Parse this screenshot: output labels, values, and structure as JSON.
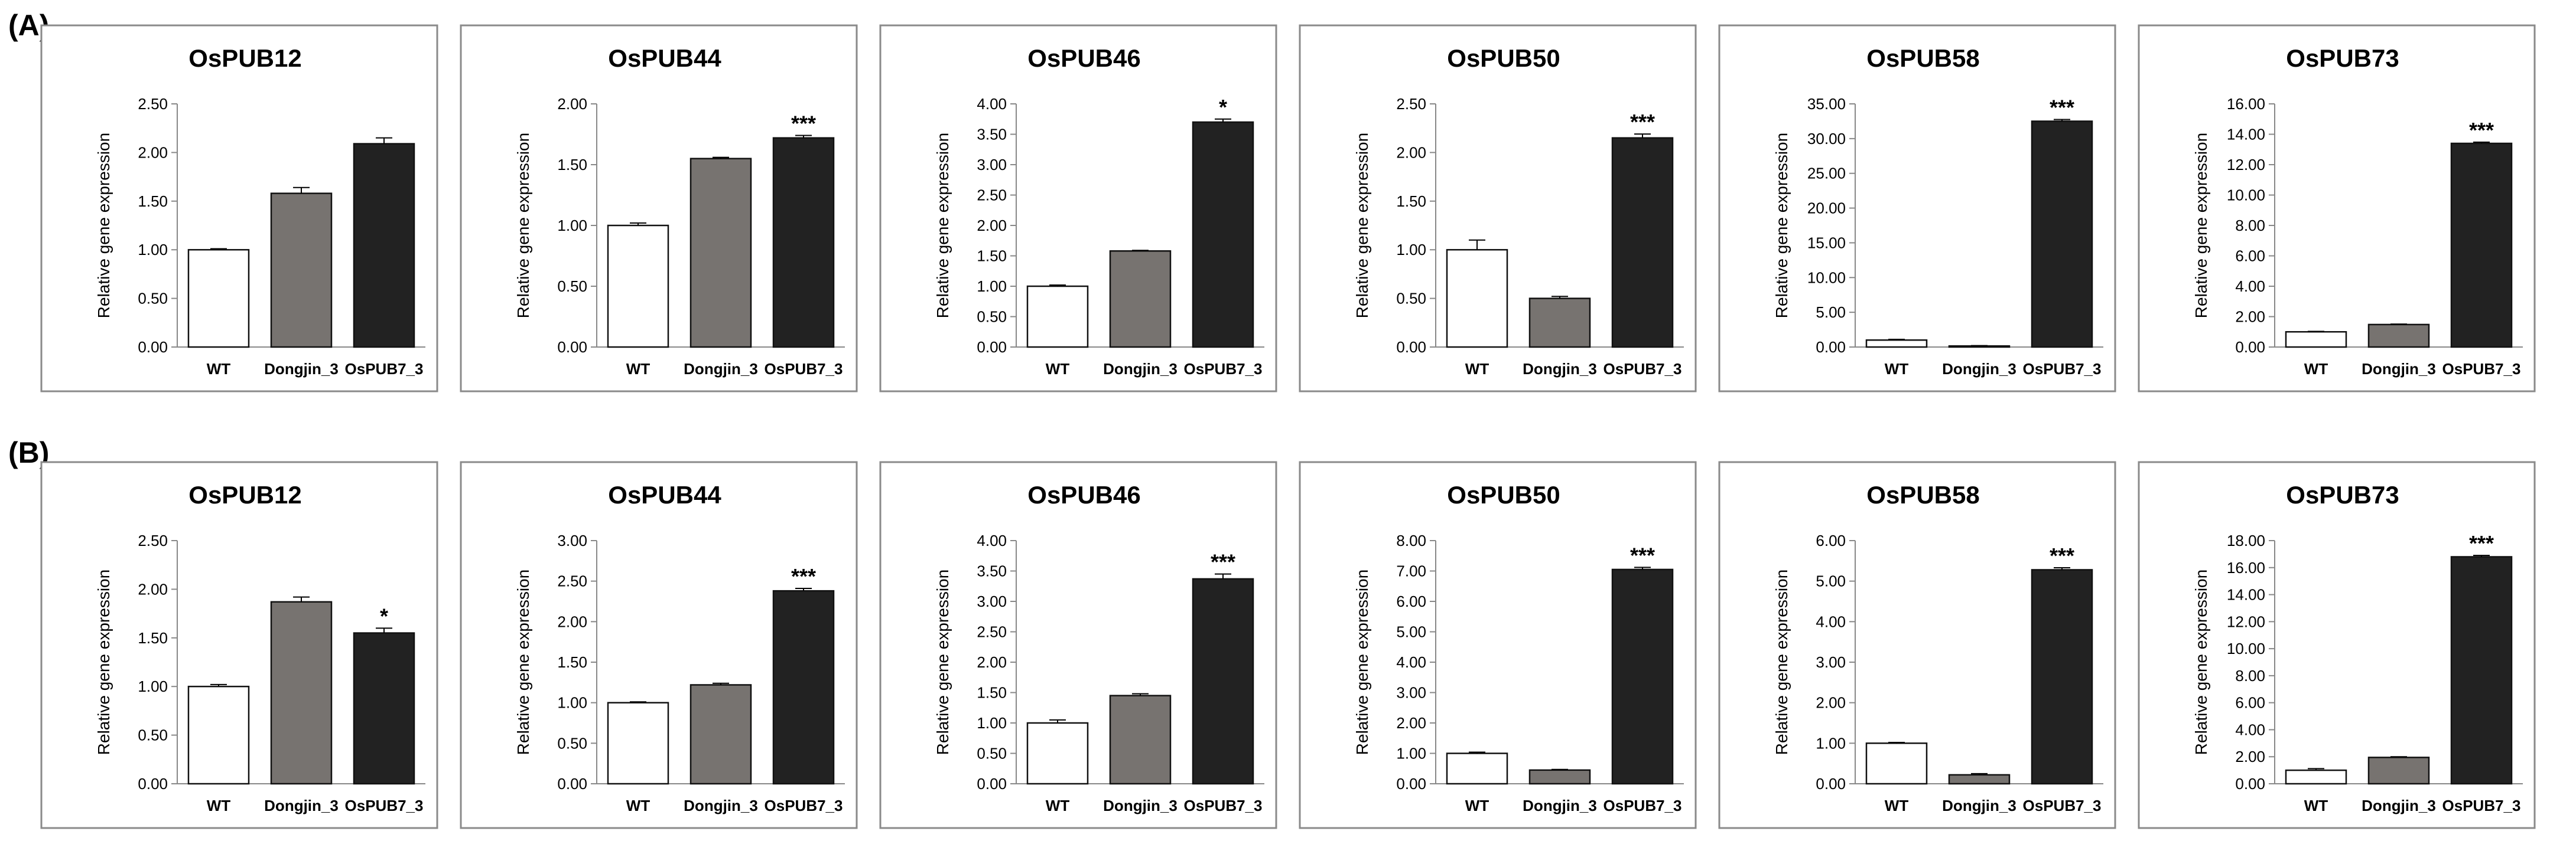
{
  "figure": {
    "panel_labels": [
      "(A)",
      "(B)"
    ],
    "colors": {
      "WT": "#ffffff",
      "Dongjin_3": "#777370",
      "OsPUB7_3": "#222222",
      "frame": "#8a8a8a",
      "axis": "#888888"
    }
  },
  "chart_data": [
    {
      "panel": "(A)",
      "type": "bar",
      "title": "OsPUB12",
      "ylabel": "Relative gene expression",
      "categories": [
        "WT",
        "Dongjin_3",
        "OsPUB7_3"
      ],
      "values": [
        1.0,
        1.58,
        2.09
      ],
      "errors": [
        0.01,
        0.06,
        0.06
      ],
      "significance": [
        "",
        "",
        ""
      ],
      "ylim": [
        0,
        2.5
      ],
      "yticks": [
        "0.00",
        "0.50",
        "1.00",
        "1.50",
        "2.00",
        "2.50"
      ]
    },
    {
      "panel": "(A)",
      "type": "bar",
      "title": "OsPUB44",
      "ylabel": "Relative gene expression",
      "categories": [
        "WT",
        "Dongjin_3",
        "OsPUB7_3"
      ],
      "values": [
        1.0,
        1.55,
        1.72
      ],
      "errors": [
        0.02,
        0.01,
        0.02
      ],
      "significance": [
        "",
        "",
        "***"
      ],
      "ylim": [
        0,
        2.0
      ],
      "yticks": [
        "0.00",
        "0.50",
        "1.00",
        "1.50",
        "2.00"
      ]
    },
    {
      "panel": "(A)",
      "type": "bar",
      "title": "OsPUB46",
      "ylabel": "Relative gene expression",
      "categories": [
        "WT",
        "Dongjin_3",
        "OsPUB7_3"
      ],
      "values": [
        1.0,
        1.58,
        3.7
      ],
      "errors": [
        0.02,
        0.01,
        0.05
      ],
      "significance": [
        "",
        "",
        "*"
      ],
      "ylim": [
        0,
        4.0
      ],
      "yticks": [
        "0.00",
        "0.50",
        "1.00",
        "1.50",
        "2.00",
        "2.50",
        "3.00",
        "3.50",
        "4.00"
      ]
    },
    {
      "panel": "(A)",
      "type": "bar",
      "title": "OsPUB50",
      "ylabel": "Relative gene expression",
      "categories": [
        "WT",
        "Dongjin_3",
        "OsPUB7_3"
      ],
      "values": [
        1.0,
        0.5,
        2.15
      ],
      "errors": [
        0.1,
        0.02,
        0.04
      ],
      "significance": [
        "",
        "",
        "***"
      ],
      "ylim": [
        0,
        2.5
      ],
      "yticks": [
        "0.00",
        "0.50",
        "1.00",
        "1.50",
        "2.00",
        "2.50"
      ]
    },
    {
      "panel": "(A)",
      "type": "bar",
      "title": "OsPUB58",
      "ylabel": "Relative gene expression",
      "categories": [
        "WT",
        "Dongjin_3",
        "OsPUB7_3"
      ],
      "values": [
        1.0,
        0.15,
        32.5
      ],
      "errors": [
        0.1,
        0.05,
        0.25
      ],
      "significance": [
        "",
        "",
        "***"
      ],
      "ylim": [
        0,
        35
      ],
      "yticks": [
        "0.00",
        "5.00",
        "10.00",
        "15.00",
        "20.00",
        "25.00",
        "30.00",
        "35.00"
      ]
    },
    {
      "panel": "(A)",
      "type": "bar",
      "title": "OsPUB73",
      "ylabel": "Relative gene expression",
      "categories": [
        "WT",
        "Dongjin_3",
        "OsPUB7_3"
      ],
      "values": [
        1.0,
        1.48,
        13.4
      ],
      "errors": [
        0.03,
        0.03,
        0.08
      ],
      "significance": [
        "",
        "",
        "***"
      ],
      "ylim": [
        0,
        16
      ],
      "yticks": [
        "0.00",
        "2.00",
        "4.00",
        "6.00",
        "8.00",
        "10.00",
        "12.00",
        "14.00",
        "16.00"
      ]
    },
    {
      "panel": "(B)",
      "type": "bar",
      "title": "OsPUB12",
      "ylabel": "Relative gene expression",
      "categories": [
        "WT",
        "Dongjin_3",
        "OsPUB7_3"
      ],
      "values": [
        1.0,
        1.87,
        1.55
      ],
      "errors": [
        0.02,
        0.05,
        0.05
      ],
      "significance": [
        "",
        "",
        "*"
      ],
      "ylim": [
        0,
        2.5
      ],
      "yticks": [
        "0.00",
        "0.50",
        "1.00",
        "1.50",
        "2.00",
        "2.50"
      ]
    },
    {
      "panel": "(B)",
      "type": "bar",
      "title": "OsPUB44",
      "ylabel": "Relative gene expression",
      "categories": [
        "WT",
        "Dongjin_3",
        "OsPUB7_3"
      ],
      "values": [
        1.0,
        1.22,
        2.38
      ],
      "errors": [
        0.01,
        0.02,
        0.03
      ],
      "significance": [
        "",
        "",
        "***"
      ],
      "ylim": [
        0,
        3.0
      ],
      "yticks": [
        "0.00",
        "0.50",
        "1.00",
        "1.50",
        "2.00",
        "2.50",
        "3.00"
      ]
    },
    {
      "panel": "(B)",
      "type": "bar",
      "title": "OsPUB46",
      "ylabel": "Relative gene expression",
      "categories": [
        "WT",
        "Dongjin_3",
        "OsPUB7_3"
      ],
      "values": [
        1.0,
        1.45,
        3.37
      ],
      "errors": [
        0.05,
        0.03,
        0.08
      ],
      "significance": [
        "",
        "",
        "***"
      ],
      "ylim": [
        0,
        4.0
      ],
      "yticks": [
        "0.00",
        "0.50",
        "1.00",
        "1.50",
        "2.00",
        "2.50",
        "3.00",
        "3.50",
        "4.00"
      ]
    },
    {
      "panel": "(B)",
      "type": "bar",
      "title": "OsPUB50",
      "ylabel": "Relative gene expression",
      "categories": [
        "WT",
        "Dongjin_3",
        "OsPUB7_3"
      ],
      "values": [
        1.0,
        0.45,
        7.05
      ],
      "errors": [
        0.04,
        0.02,
        0.07
      ],
      "significance": [
        "",
        "",
        "***"
      ],
      "ylim": [
        0,
        8.0
      ],
      "yticks": [
        "0.00",
        "1.00",
        "2.00",
        "3.00",
        "4.00",
        "5.00",
        "6.00",
        "7.00",
        "8.00"
      ]
    },
    {
      "panel": "(B)",
      "type": "bar",
      "title": "OsPUB58",
      "ylabel": "Relative gene expression",
      "categories": [
        "WT",
        "Dongjin_3",
        "OsPUB7_3"
      ],
      "values": [
        1.0,
        0.22,
        5.28
      ],
      "errors": [
        0.02,
        0.03,
        0.05
      ],
      "significance": [
        "",
        "",
        "***"
      ],
      "ylim": [
        0,
        6.0
      ],
      "yticks": [
        "0.00",
        "1.00",
        "2.00",
        "3.00",
        "4.00",
        "5.00",
        "6.00"
      ]
    },
    {
      "panel": "(B)",
      "type": "bar",
      "title": "OsPUB73",
      "ylabel": "Relative gene expression",
      "categories": [
        "WT",
        "Dongjin_3",
        "OsPUB7_3"
      ],
      "values": [
        1.0,
        1.95,
        16.8
      ],
      "errors": [
        0.12,
        0.05,
        0.1
      ],
      "significance": [
        "",
        "",
        "***"
      ],
      "ylim": [
        0,
        18
      ],
      "yticks": [
        "0.00",
        "2.00",
        "4.00",
        "6.00",
        "8.00",
        "10.00",
        "12.00",
        "14.00",
        "16.00",
        "18.00"
      ]
    }
  ]
}
